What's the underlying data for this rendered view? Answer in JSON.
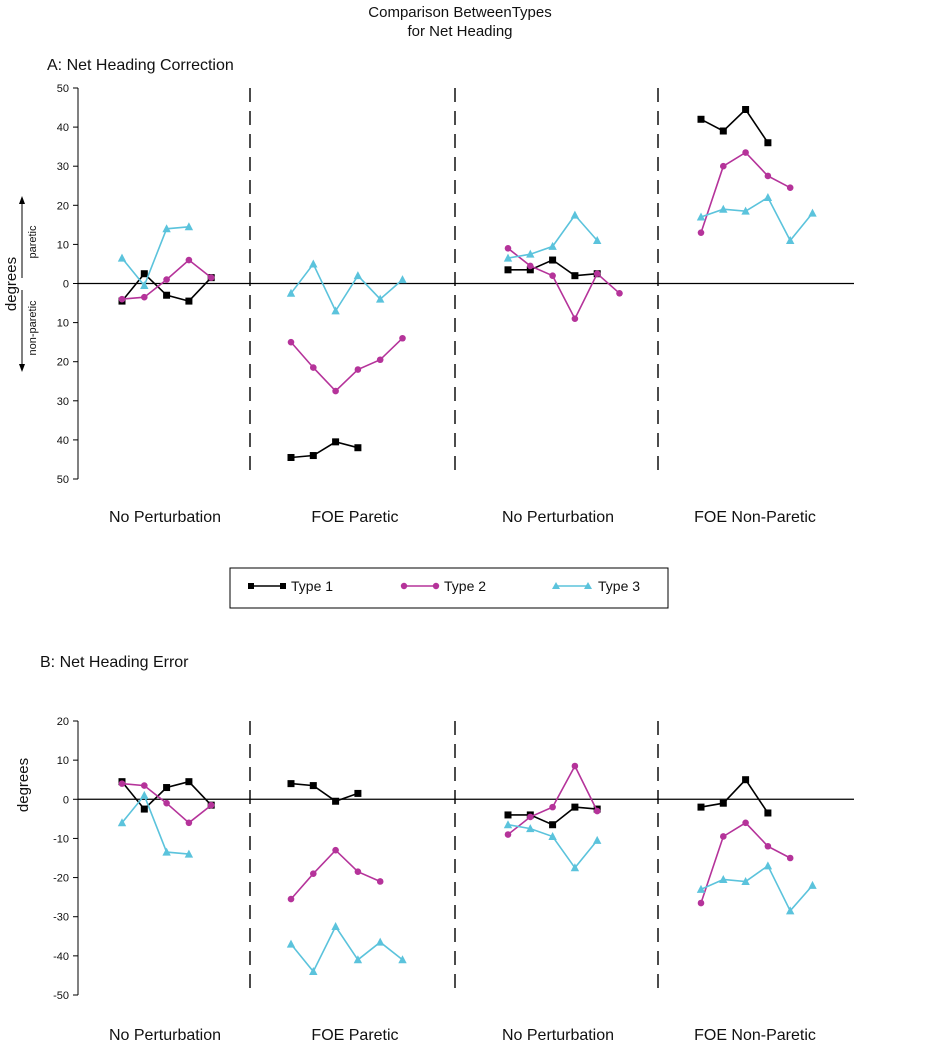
{
  "title_line1": "Comparison BetweenTypes",
  "title_line2": "for Net Heading",
  "legend": {
    "entries": [
      "Type 1",
      "Type 2",
      "Type 3"
    ]
  },
  "colors": {
    "type1": "#000000",
    "type2": "#b5339a",
    "type3": "#5bc3dc",
    "axis": "#000000"
  },
  "chart_data": [
    {
      "type": "line",
      "title": "A: Net Heading Correction",
      "ylabel": "degrees",
      "ylabel_up": "paretic",
      "ylabel_down": "non-paretic",
      "ylim": [
        -50,
        50
      ],
      "yticks": [
        50,
        40,
        30,
        20,
        10,
        0,
        -10,
        -20,
        -30,
        -40,
        -50
      ],
      "ytick_labels": [
        "50",
        "40",
        "30",
        "20",
        "10",
        "0",
        "10",
        "20",
        "30",
        "40",
        "50"
      ],
      "conditions": [
        "No Perturbation",
        "FOE Paretic",
        "No Perturbation",
        "FOE Non-Paretic"
      ],
      "series": [
        {
          "name": "Type 1",
          "marker": "square",
          "points": [
            {
              "cond": 0,
              "pos": 0,
              "values": [
                -4.5,
                2.5,
                -3,
                -4.5,
                1.5
              ]
            },
            {
              "cond": 1,
              "pos": 0,
              "values": [
                -44.5,
                -44,
                -40.5,
                -42
              ]
            },
            {
              "cond": 2,
              "pos": 0,
              "values": [
                3.5,
                3.5,
                6,
                2,
                2.5
              ]
            },
            {
              "cond": 3,
              "pos": 0,
              "values": [
                42,
                39,
                44.5,
                36
              ]
            }
          ]
        },
        {
          "name": "Type 2",
          "marker": "circle",
          "points": [
            {
              "cond": 0,
              "pos": 0,
              "values": [
                -4,
                -3.5,
                1,
                6,
                1.5
              ]
            },
            {
              "cond": 1,
              "pos": 0,
              "values": [
                -15,
                -21.5,
                -27.5,
                -22,
                -19.5,
                -14
              ]
            },
            {
              "cond": 2,
              "pos": 0,
              "values": [
                9,
                4.5,
                2,
                -9,
                2.5,
                -2.5
              ]
            },
            {
              "cond": 3,
              "pos": 0,
              "values": [
                13,
                30,
                33.5,
                27.5,
                24.5
              ]
            }
          ]
        },
        {
          "name": "Type 3",
          "marker": "triangle",
          "points": [
            {
              "cond": 0,
              "pos": 0,
              "values": [
                6.5,
                -0.5,
                14,
                14.5
              ]
            },
            {
              "cond": 1,
              "pos": 0,
              "values": [
                -2.5,
                5,
                -7,
                2,
                -4,
                1
              ]
            },
            {
              "cond": 2,
              "pos": 0,
              "values": [
                6.5,
                7.5,
                9.5,
                17.5,
                11
              ]
            },
            {
              "cond": 3,
              "pos": 0,
              "values": [
                17,
                19,
                18.5,
                22,
                11,
                18
              ]
            }
          ]
        }
      ]
    },
    {
      "type": "line",
      "title": "B: Net Heading Error",
      "ylabel": "degrees",
      "ylim": [
        -50,
        20
      ],
      "yticks": [
        20,
        10,
        0,
        -10,
        -20,
        -30,
        -40,
        -50
      ],
      "ytick_labels": [
        "20",
        "10",
        "0",
        "-10",
        "-20",
        "-30",
        "-40",
        "-50"
      ],
      "conditions": [
        "No Perturbation",
        "FOE Paretic",
        "No Perturbation",
        "FOE Non-Paretic"
      ],
      "series": [
        {
          "name": "Type 1",
          "marker": "square",
          "points": [
            {
              "cond": 0,
              "values": [
                4.5,
                -2.5,
                3,
                4.5,
                -1.5
              ]
            },
            {
              "cond": 1,
              "values": [
                4,
                3.5,
                -0.5,
                1.5
              ]
            },
            {
              "cond": 2,
              "values": [
                -4,
                -4,
                -6.5,
                -2,
                -2.5
              ]
            },
            {
              "cond": 3,
              "values": [
                -2,
                -1,
                5,
                -3.5
              ]
            }
          ]
        },
        {
          "name": "Type 2",
          "marker": "circle",
          "points": [
            {
              "cond": 0,
              "values": [
                4,
                3.5,
                -1,
                -6,
                -1.5
              ]
            },
            {
              "cond": 1,
              "values": [
                -25.5,
                -19,
                -13,
                -18.5,
                -21
              ]
            },
            {
              "cond": 2,
              "values": [
                -9,
                -4.5,
                -2,
                8.5,
                -3
              ]
            },
            {
              "cond": 3,
              "values": [
                -26.5,
                -9.5,
                -6,
                -12,
                -15
              ]
            }
          ]
        },
        {
          "name": "Type 3",
          "marker": "triangle",
          "points": [
            {
              "cond": 0,
              "values": [
                -6,
                1,
                -13.5,
                -14
              ]
            },
            {
              "cond": 1,
              "values": [
                -37,
                -44,
                -32.5,
                -41,
                -36.5,
                -41
              ]
            },
            {
              "cond": 2,
              "values": [
                -6.5,
                -7.5,
                -9.5,
                -17.5,
                -10.5
              ]
            },
            {
              "cond": 3,
              "values": [
                -23,
                -20.5,
                -21,
                -17,
                -28.5,
                -22
              ]
            }
          ]
        }
      ]
    }
  ]
}
